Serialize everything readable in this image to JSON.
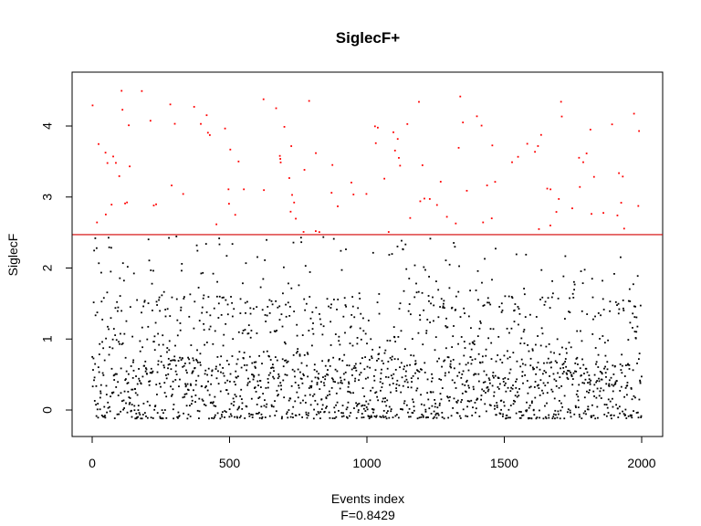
{
  "chart_data": {
    "type": "scatter",
    "title": "SiglecF+",
    "xlabel": "Events index",
    "ylabel": "SiglecF",
    "subtitle": "F=0.8429",
    "xlim": [
      0,
      2000
    ],
    "ylim": [
      -0.15,
      4.65
    ],
    "x_ticks": [
      0,
      500,
      1000,
      1500,
      2000
    ],
    "y_ticks": [
      0,
      1,
      2,
      3,
      4
    ],
    "threshold": 2.47,
    "grid": false,
    "legend": "none",
    "n_points": 2000,
    "series": [
      {
        "color_below": "#000000",
        "color_above": "#ff0000"
      }
    ],
    "threshold_color": "#d40000"
  }
}
